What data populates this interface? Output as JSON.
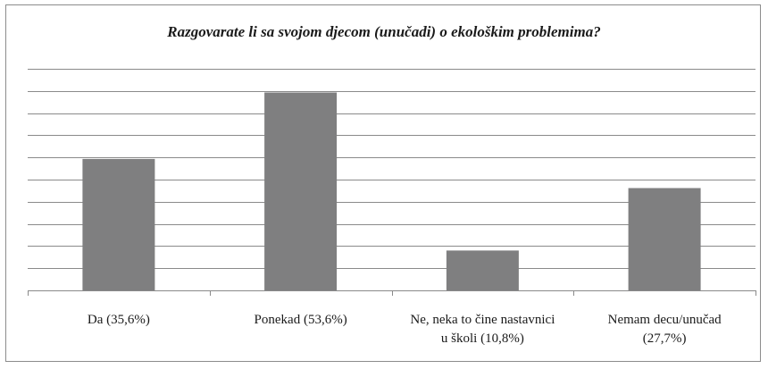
{
  "chart_data": {
    "type": "bar",
    "title": "Razgovarate li sa svojom djecom (unučadi) o ekološkim problemima?",
    "categories": [
      [
        "Da (35,6%)"
      ],
      [
        "Ponekad (53,6%)"
      ],
      [
        "Ne, neka to čine nastavnici",
        "u školi (10,8%)"
      ],
      [
        "Nemam decu/unučad",
        "(27,7%)"
      ]
    ],
    "values": [
      35.6,
      53.6,
      10.8,
      27.7
    ],
    "ylim": [
      0,
      60
    ],
    "y_gridlines": [
      0,
      6,
      12,
      18,
      24,
      30,
      36,
      42,
      48,
      54,
      60
    ],
    "grid": true,
    "legend": "none",
    "bar_color": "#7f7f80",
    "grid_color": "#8a8a8a"
  }
}
